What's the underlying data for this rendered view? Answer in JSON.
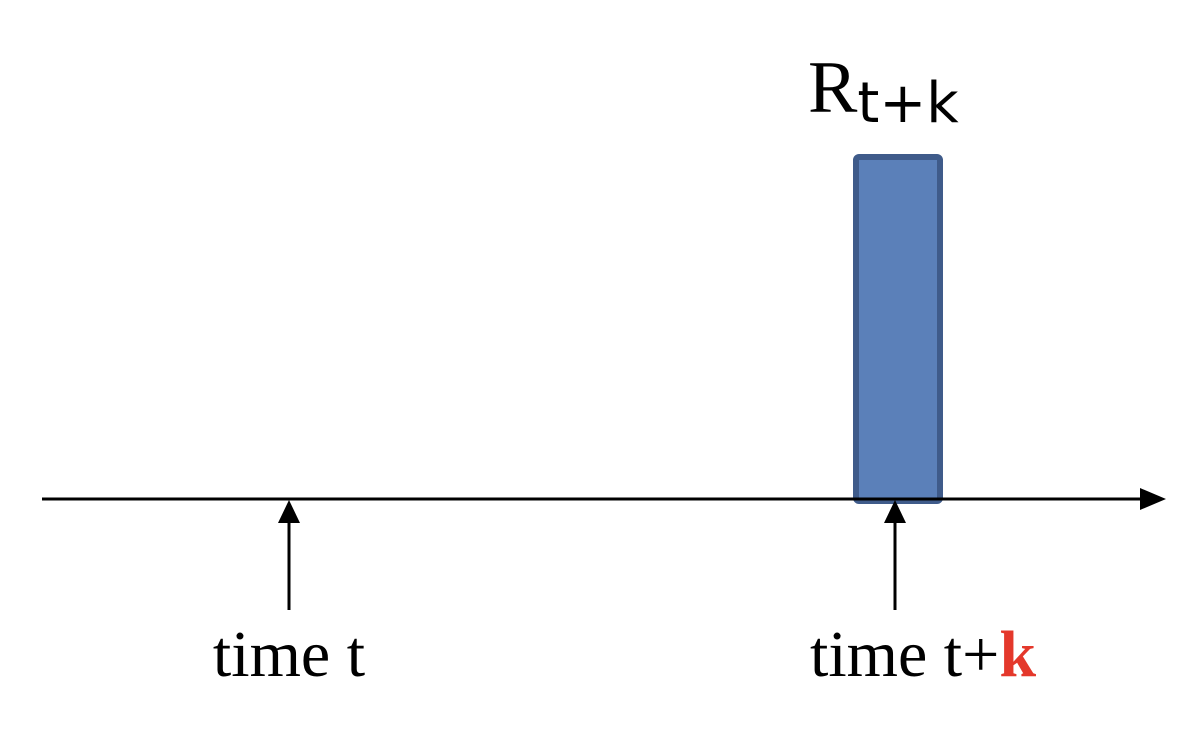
{
  "reward": {
    "symbol": "R",
    "subscript": "t+k",
    "bar_fill": "#5b80b9",
    "bar_stroke": "#3f5b8a"
  },
  "markers": [
    {
      "prefix": "time t",
      "highlight": ""
    },
    {
      "prefix": "time t+",
      "highlight": "k"
    }
  ],
  "highlight_color": "#e4382b",
  "axis_color": "#000000"
}
